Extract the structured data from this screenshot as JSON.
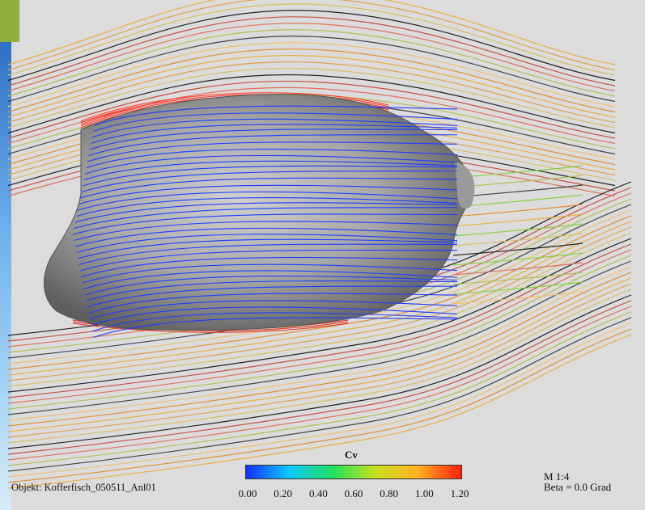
{
  "annotations": {
    "object": "Objekt: Kofferfisch_050511_Anl01",
    "scale": "M 1:4",
    "beta": "Beta = 0.0 Grad"
  },
  "colorbar": {
    "title": "Cv",
    "ticks": [
      "0.00",
      "0.20",
      "0.40",
      "0.60",
      "0.80",
      "1.00",
      "1.20"
    ],
    "min": 0.0,
    "max": 1.2,
    "stops": [
      "#1030ff",
      "#10c8ff",
      "#20e060",
      "#c8e020",
      "#ffb020",
      "#ff2010"
    ]
  },
  "colors": {
    "background": "#dcdcdc",
    "body_shade": "#8a8a8a",
    "wall_streamline": "#1e3cff",
    "sky_left_edge": "#5aa0e6"
  }
}
